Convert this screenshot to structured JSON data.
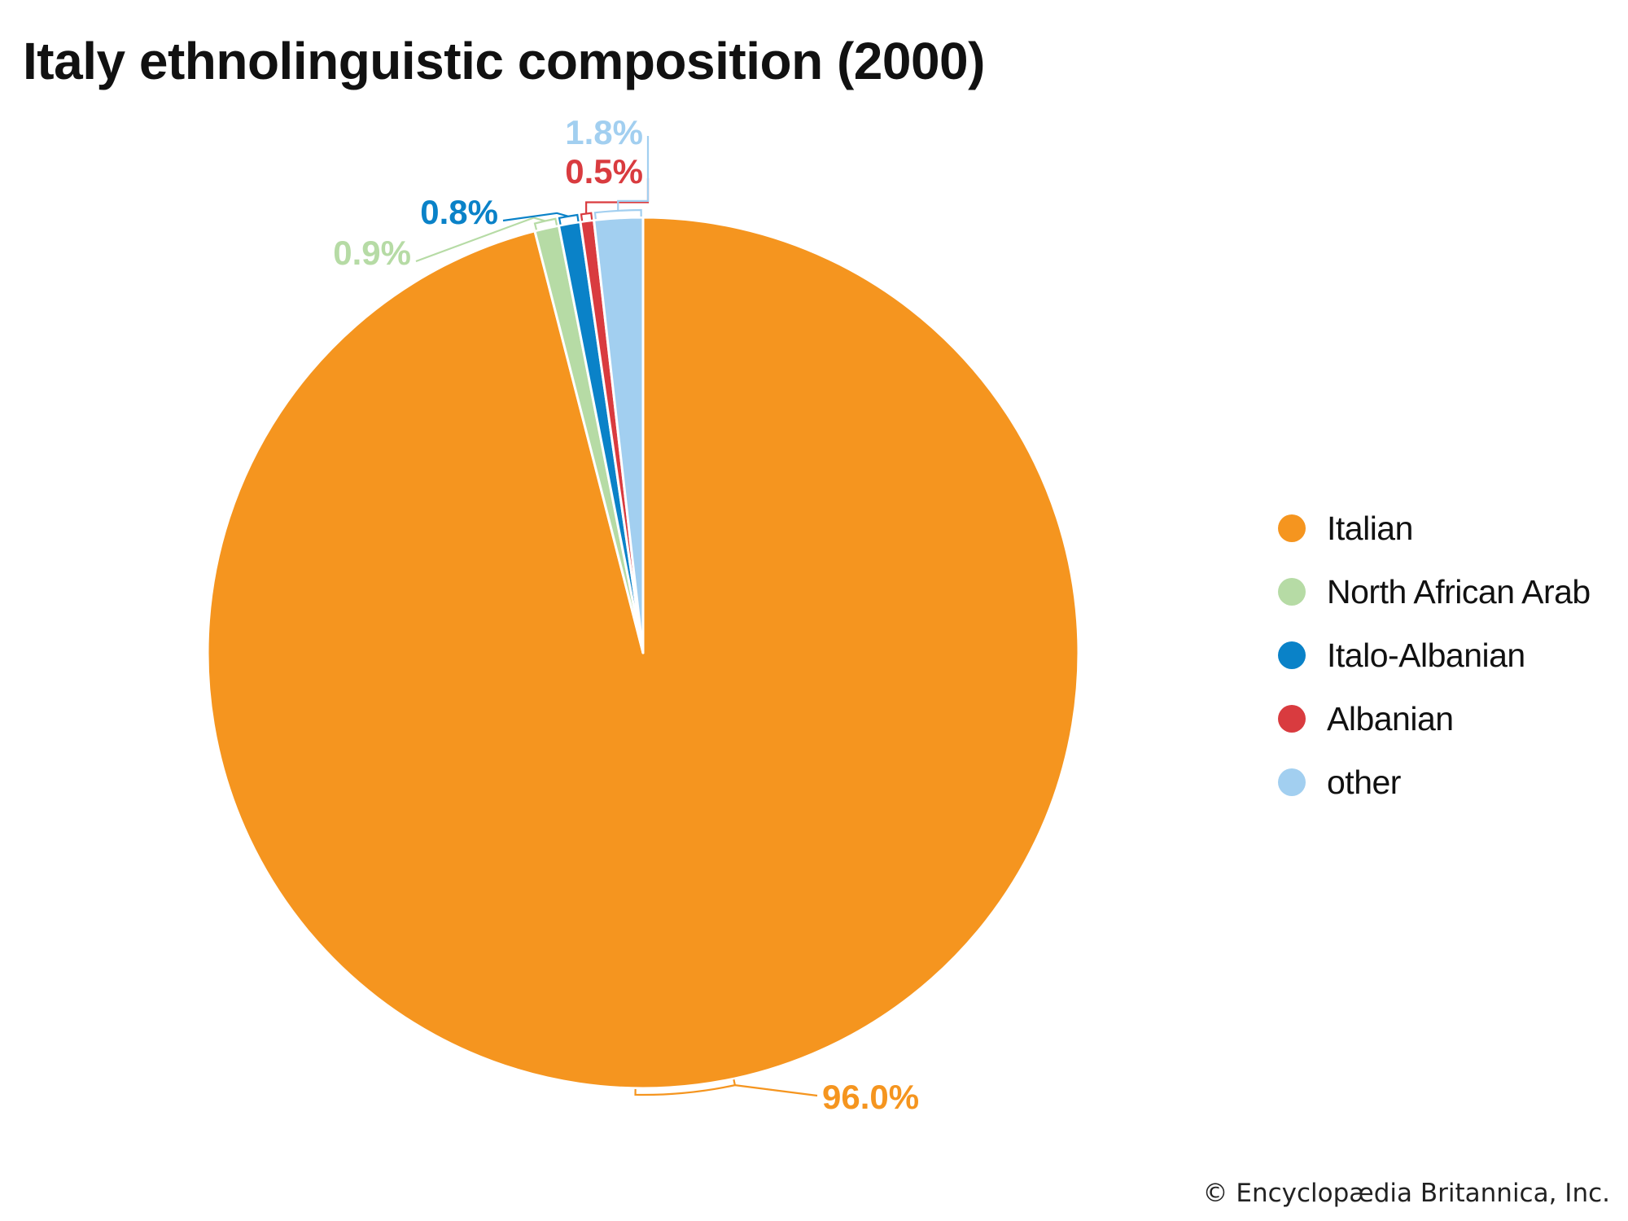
{
  "chart_data": {
    "type": "pie",
    "title": "Italy ethnolinguistic composition (2000)",
    "start_angle_deg": 0,
    "direction": "clockwise",
    "legend_position": "right",
    "slices": [
      {
        "name": "Italian",
        "value": 96.0,
        "label": "96.0%",
        "color": "#f5951f"
      },
      {
        "name": "North African Arab",
        "value": 0.9,
        "label": "0.9%",
        "color": "#b6dba5"
      },
      {
        "name": "Italo-Albanian",
        "value": 0.8,
        "label": "0.8%",
        "color": "#0a82c8"
      },
      {
        "name": "Albanian",
        "value": 0.5,
        "label": "0.5%",
        "color": "#d93b3f"
      },
      {
        "name": "other",
        "value": 1.8,
        "label": "1.8%",
        "color": "#a2cff0"
      }
    ]
  },
  "footer": {
    "copyright": "© Encyclopædia Britannica, Inc."
  }
}
